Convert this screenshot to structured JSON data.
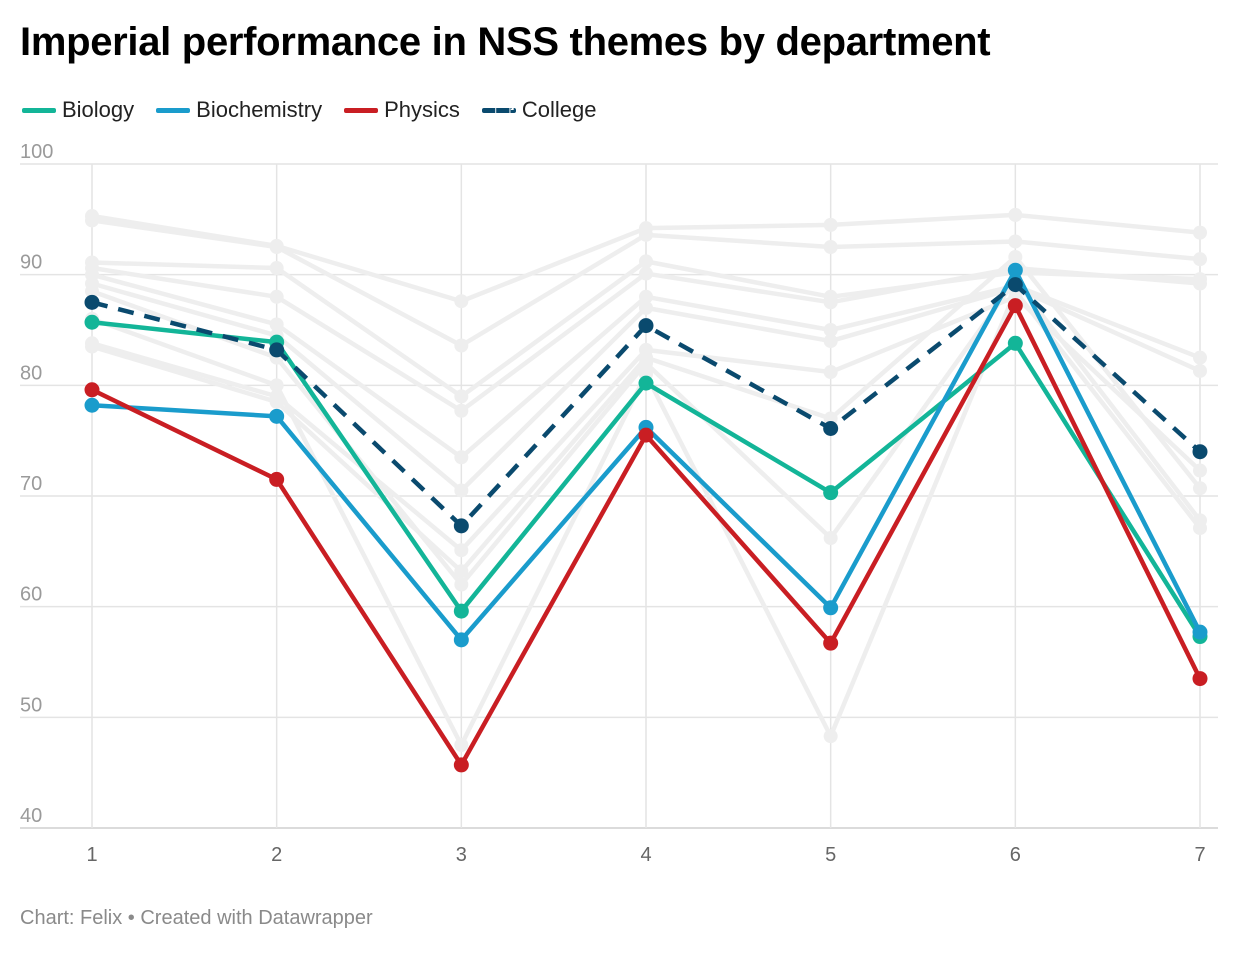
{
  "chart_data": {
    "type": "line",
    "title": "Imperial performance in NSS themes by department",
    "xlabel": "",
    "ylabel": "",
    "x": [
      1,
      2,
      3,
      4,
      5,
      6,
      7
    ],
    "ylim": [
      40,
      100
    ],
    "yticks": [
      40,
      50,
      60,
      70,
      80,
      90,
      100
    ],
    "grid": true,
    "legend_position": "top-left",
    "series": [
      {
        "name": "Biology",
        "color": "#13b598",
        "dashed": false,
        "values": [
          85.7,
          83.9,
          59.6,
          80.2,
          70.3,
          83.8,
          57.3
        ]
      },
      {
        "name": "Biochemistry",
        "color": "#1a9ccc",
        "dashed": false,
        "values": [
          78.2,
          77.2,
          57.0,
          76.2,
          59.9,
          90.4,
          57.7
        ]
      },
      {
        "name": "Physics",
        "color": "#c91e23",
        "dashed": false,
        "values": [
          79.6,
          71.5,
          45.7,
          75.5,
          56.7,
          87.2,
          53.5
        ]
      },
      {
        "name": "College",
        "color": "#0a4a6e",
        "dashed": true,
        "values": [
          87.5,
          83.2,
          67.3,
          85.4,
          76.1,
          89.1,
          74.0
        ]
      }
    ],
    "background_series": [
      {
        "values": [
          95.3,
          92.6,
          87.6,
          94.2,
          94.5,
          95.4,
          93.8
        ]
      },
      {
        "values": [
          94.9,
          92.5,
          83.6,
          93.6,
          92.5,
          93.0,
          91.4
        ]
      },
      {
        "values": [
          91.1,
          90.6,
          79.0,
          91.2,
          88.0,
          90.2,
          89.6
        ]
      },
      {
        "values": [
          90.6,
          88.0,
          77.7,
          90.1,
          87.5,
          90.6,
          89.2
        ]
      },
      {
        "values": [
          90.0,
          85.5,
          73.5,
          88.0,
          85.0,
          89.0,
          82.5
        ]
      },
      {
        "values": [
          89.2,
          84.5,
          70.5,
          87.0,
          84.0,
          88.8,
          81.3
        ]
      },
      {
        "values": [
          83.8,
          79.0,
          65.1,
          83.2,
          81.2,
          88.0,
          72.3
        ]
      },
      {
        "values": [
          83.5,
          78.5,
          63.2,
          82.5,
          77.0,
          91.6,
          70.7
        ]
      },
      {
        "values": [
          88.5,
          82.5,
          62.0,
          82.0,
          66.2,
          89.5,
          67.8
        ]
      },
      {
        "values": [
          86.0,
          80.0,
          47.5,
          81.0,
          48.3,
          88.5,
          67.1
        ]
      }
    ]
  },
  "footer": {
    "text": "Chart: Felix • Created with Datawrapper"
  }
}
